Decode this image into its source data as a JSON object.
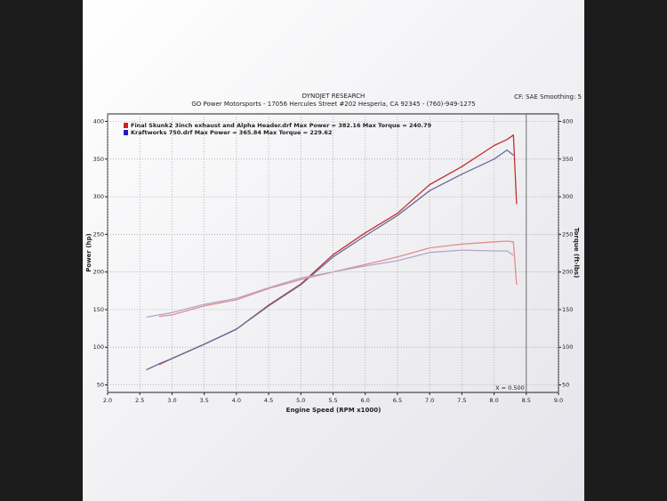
{
  "chart_data": {
    "type": "line",
    "title": "DYNOJET RESEARCH",
    "subtitle": "GO Power Motorsports - 17056 Hercules Street #202 Hesperia, CA 92345 - (760)-949-1275",
    "settings_text": "CF: SAE  Smoothing: 5",
    "x_label": "Engine Speed (RPM x1000)",
    "y_label": "Power (hp)",
    "y2_label": "Torque (ft-lbs)",
    "annotation": "X = 0.500",
    "cursor": 8.5,
    "legend": [
      {
        "text": "Final Skunk2 3inch exhaust and Alpha Header.drf Max Power = 382.16 Max Torque = 240.79",
        "color": "#d02020"
      },
      {
        "text": "Kraftworks 750.drf Max Power = 365.84 Max Torque = 229.62",
        "color": "#2020c0"
      }
    ],
    "x": [
      2.6,
      2.8,
      3.0,
      3.5,
      4.0,
      4.5,
      5.0,
      5.5,
      6.0,
      6.5,
      7.0,
      7.5,
      8.0,
      8.2,
      8.3,
      8.35
    ],
    "series": [
      {
        "color": "#c0312b",
        "values": [
          null,
          77,
          85,
          104,
          124,
          156,
          184,
          223,
          252,
          278,
          316,
          340,
          368,
          376,
          382,
          290
        ]
      },
      {
        "color": "#6a6a98",
        "values": [
          70,
          78,
          85,
          104,
          124,
          155,
          183,
          220,
          248,
          275,
          308,
          330,
          350,
          362,
          355,
          null
        ]
      },
      {
        "color": "#e48c8c",
        "axis": "y2",
        "values": [
          null,
          141,
          143,
          155,
          163,
          178,
          190,
          200,
          210,
          220,
          232,
          237,
          240,
          241,
          240,
          183
        ]
      },
      {
        "color": "#b0a8c8",
        "axis": "y2",
        "values": [
          140,
          143,
          146,
          157,
          165,
          179,
          192,
          200,
          208,
          215,
          226,
          229,
          228,
          228,
          222,
          null
        ]
      }
    ],
    "xlim": [
      2.0,
      9.0
    ],
    "xticks": [
      {
        "value": 2,
        "label": "2.0"
      },
      2.5,
      {
        "value": 3,
        "label": "3.0"
      },
      3.5,
      {
        "value": 4,
        "label": "4.0"
      },
      4.5,
      {
        "value": 5,
        "label": "5.0"
      },
      5.5,
      {
        "value": 6,
        "label": "6.0"
      },
      6.5,
      {
        "value": 7,
        "label": "7.0"
      },
      7.5,
      {
        "value": 8,
        "label": "8.0"
      },
      8.5,
      {
        "value": 9,
        "label": "9.0"
      }
    ],
    "ylim": [
      40,
      410
    ],
    "yticks": [
      50,
      100,
      150,
      200,
      250,
      300,
      350,
      400
    ],
    "y2lim": [
      40,
      410
    ],
    "y2ticks": [
      50,
      100,
      150,
      200,
      250,
      300,
      350,
      400
    ],
    "grid": true
  }
}
